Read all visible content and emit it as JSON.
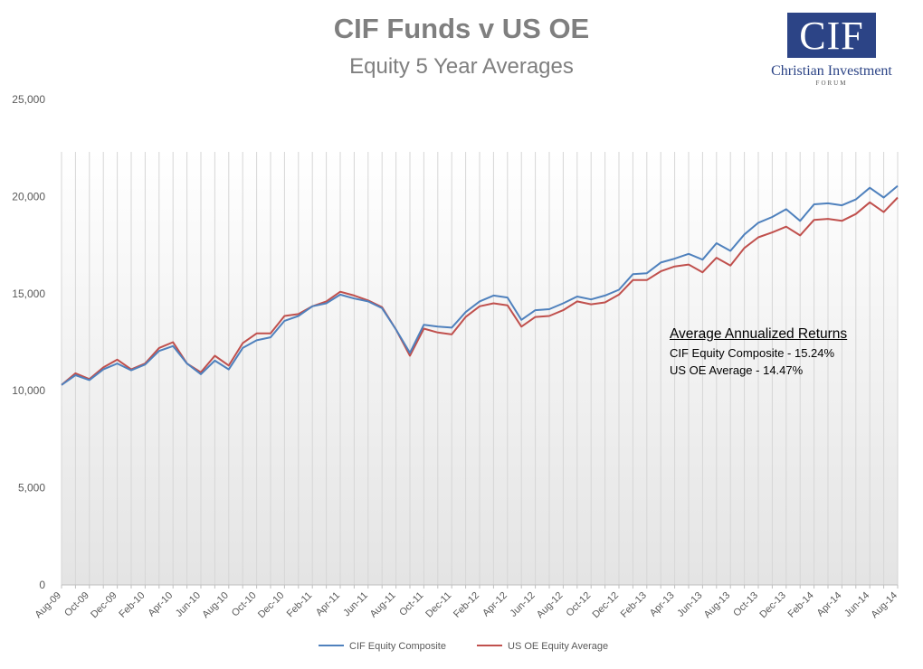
{
  "header": {
    "title": "CIF Funds v US OE",
    "subtitle": "Equity 5 Year Averages"
  },
  "logo": {
    "mark": "CIF",
    "name": "Christian Investment",
    "tagline": "FORUM",
    "color": "#2c4486"
  },
  "annotation": {
    "title": "Average Annualized Returns",
    "lines": [
      "CIF Equity Composite - 15.24%",
      "US OE Average - 14.47%"
    ]
  },
  "chart_data": {
    "type": "line",
    "title": "CIF Funds v US OE",
    "subtitle": "Equity 5 Year Averages",
    "xlabel": "",
    "ylabel": "",
    "ylim": [
      0,
      25000
    ],
    "yticks": [
      "0",
      "5,000",
      "10,000",
      "15,000",
      "20,000",
      "25,000"
    ],
    "ytick_values": [
      0,
      5000,
      10000,
      15000,
      20000,
      25000
    ],
    "x": [
      "Aug-09",
      "Sep-09",
      "Oct-09",
      "Nov-09",
      "Dec-09",
      "Jan-10",
      "Feb-10",
      "Mar-10",
      "Apr-10",
      "May-10",
      "Jun-10",
      "Jul-10",
      "Aug-10",
      "Sep-10",
      "Oct-10",
      "Nov-10",
      "Dec-10",
      "Jan-11",
      "Feb-11",
      "Mar-11",
      "Apr-11",
      "May-11",
      "Jun-11",
      "Jul-11",
      "Aug-11",
      "Sep-11",
      "Oct-11",
      "Nov-11",
      "Dec-11",
      "Jan-12",
      "Feb-12",
      "Mar-12",
      "Apr-12",
      "May-12",
      "Jun-12",
      "Jul-12",
      "Aug-12",
      "Sep-12",
      "Oct-12",
      "Nov-12",
      "Dec-12",
      "Jan-13",
      "Feb-13",
      "Mar-13",
      "Apr-13",
      "May-13",
      "Jun-13",
      "Jul-13",
      "Aug-13",
      "Sep-13",
      "Oct-13",
      "Nov-13",
      "Dec-13",
      "Jan-14",
      "Feb-14",
      "Mar-14",
      "Apr-14",
      "May-14",
      "Jun-14",
      "Jul-14",
      "Aug-14"
    ],
    "x_tick_labels": [
      "Aug-09",
      "Oct-09",
      "Dec-09",
      "Feb-10",
      "Apr-10",
      "Jun-10",
      "Aug-10",
      "Oct-10",
      "Dec-10",
      "Feb-11",
      "Apr-11",
      "Jun-11",
      "Aug-11",
      "Oct-11",
      "Dec-11",
      "Feb-12",
      "Apr-12",
      "Jun-12",
      "Aug-12",
      "Oct-12",
      "Dec-12",
      "Feb-13",
      "Apr-13",
      "Jun-13",
      "Aug-13",
      "Oct-13",
      "Dec-13",
      "Feb-14",
      "Apr-14",
      "Jun-14",
      "Aug-14"
    ],
    "series": [
      {
        "name": "CIF Equity Composite",
        "color": "#4f81bd",
        "values": [
          10300,
          10800,
          10550,
          11100,
          11400,
          11050,
          11350,
          12050,
          12300,
          11400,
          10850,
          11550,
          11100,
          12200,
          12600,
          12750,
          13600,
          13850,
          14350,
          14500,
          14950,
          14750,
          14600,
          14250,
          13150,
          11950,
          13400,
          13300,
          13250,
          14050,
          14600,
          14900,
          14800,
          13650,
          14150,
          14200,
          14500,
          14850,
          14700,
          14900,
          15200,
          16000,
          16050,
          16600,
          16800,
          17050,
          16750,
          17600,
          17200,
          18050,
          18650,
          18950,
          19350,
          18750,
          19600,
          19650,
          19550,
          19850,
          20450,
          19950,
          20550
        ]
      },
      {
        "name": "US OE Equity Average",
        "color": "#c0504d",
        "values": [
          10300,
          10900,
          10600,
          11200,
          11600,
          11100,
          11400,
          12200,
          12500,
          11400,
          10950,
          11800,
          11300,
          12450,
          12950,
          12950,
          13850,
          13950,
          14350,
          14600,
          15100,
          14900,
          14650,
          14300,
          13150,
          11800,
          13200,
          13000,
          12900,
          13800,
          14350,
          14500,
          14400,
          13300,
          13800,
          13850,
          14150,
          14600,
          14450,
          14550,
          14950,
          15700,
          15700,
          16150,
          16400,
          16500,
          16100,
          16850,
          16450,
          17350,
          17900,
          18150,
          18450,
          18000,
          18800,
          18850,
          18750,
          19100,
          19700,
          19200,
          19950
        ]
      }
    ],
    "legend": "bottom",
    "grid": {
      "y": false,
      "x": true
    },
    "style": "area-gradient-background"
  }
}
